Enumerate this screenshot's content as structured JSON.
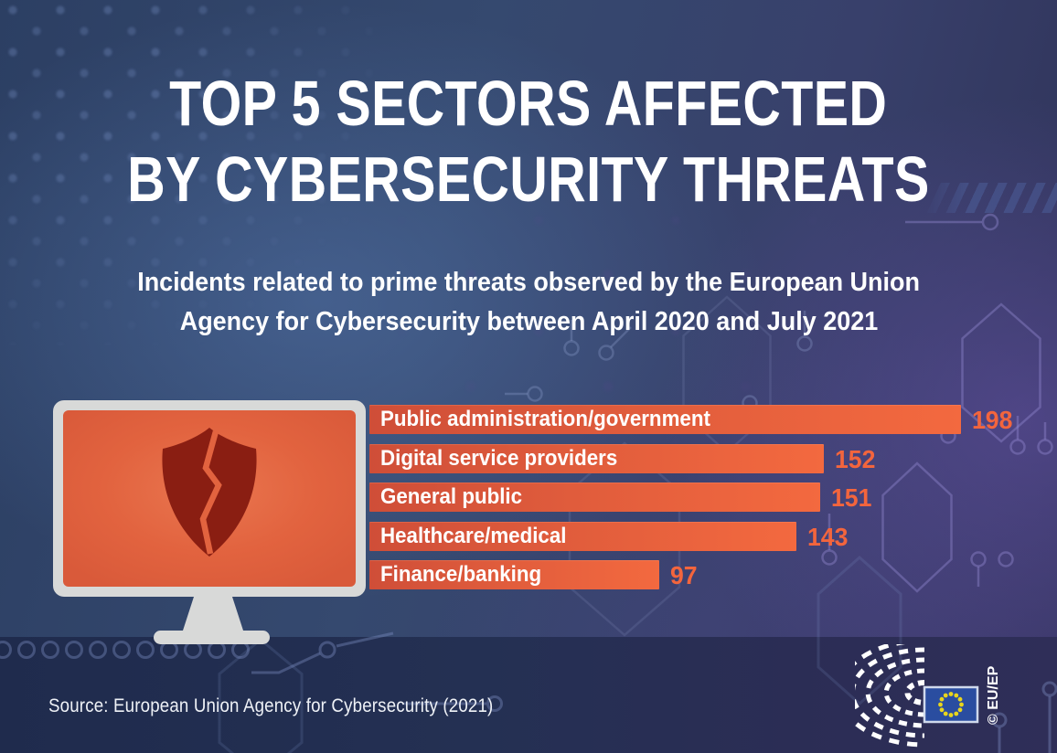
{
  "title": {
    "line1": "TOP 5 SECTORS AFFECTED",
    "line2": "BY CYBERSECURITY THREATS"
  },
  "subtitle": {
    "line1": "Incidents related to prime threats observed by the European Union",
    "line2": "Agency for Cybersecurity between April 2020 and July 2021"
  },
  "chart_data": {
    "type": "bar",
    "orientation": "horizontal",
    "categories": [
      "Public administration/government",
      "Digital service providers",
      "General public",
      "Healthcare/medical",
      "Finance/banking"
    ],
    "values": [
      198,
      152,
      151,
      143,
      97
    ],
    "value_labels": [
      "198",
      "152",
      "151",
      "143",
      "97"
    ],
    "xlim": [
      0,
      210
    ],
    "grid": false,
    "legend_position": "none",
    "bar_color_start": "#cf4e38",
    "bar_color_end": "#f3693f",
    "value_label_color": "#f3653d",
    "category_label_color": "#ffffff"
  },
  "icons": {
    "monitor": "monitor-icon",
    "shield": "broken-shield-icon"
  },
  "source": {
    "text": "Source: European Union Agency for Cybersecurity (2021)"
  },
  "logo": {
    "copyright": "© EU/EP"
  },
  "colors": {
    "background_blue": "#35496f",
    "background_purple": "#38406b",
    "band_navy": "#1f2b4d",
    "accent_orange": "#e05c3c",
    "shield_dark_red": "#8a1e12",
    "monitor_gray": "#d8d9d8",
    "text_white": "#ffffff"
  }
}
